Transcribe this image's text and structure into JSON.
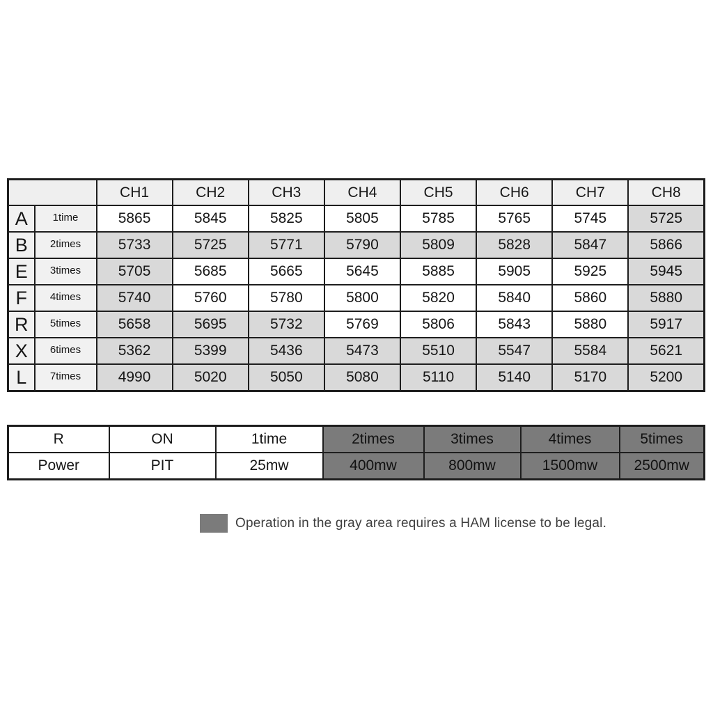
{
  "colors": {
    "border": "#1e1e1e",
    "text": "#161616",
    "header_bg": "#efefef",
    "label_bg": "#f1f1f1",
    "cell_white": "#ffffff",
    "cell_gray": "#d9d9d9",
    "dark_cell": "#7b7b7b",
    "legend_swatch": "#7b7b7b",
    "legend_text": "#3e3e3e"
  },
  "freq_table": {
    "corner_label": "",
    "channels": [
      "CH1",
      "CH2",
      "CH3",
      "CH4",
      "CH5",
      "CH6",
      "CH7",
      "CH8"
    ],
    "rows": [
      {
        "band": "A",
        "times": "1time",
        "values": [
          "5865",
          "5845",
          "5825",
          "5805",
          "5785",
          "5765",
          "5745",
          "5725"
        ],
        "gray": [
          0,
          0,
          0,
          0,
          0,
          0,
          0,
          1
        ]
      },
      {
        "band": "B",
        "times": "2times",
        "values": [
          "5733",
          "5725",
          "5771",
          "5790",
          "5809",
          "5828",
          "5847",
          "5866"
        ],
        "gray": [
          1,
          1,
          1,
          1,
          1,
          1,
          1,
          1
        ]
      },
      {
        "band": "E",
        "times": "3times",
        "values": [
          "5705",
          "5685",
          "5665",
          "5645",
          "5885",
          "5905",
          "5925",
          "5945"
        ],
        "gray": [
          1,
          0,
          0,
          0,
          0,
          0,
          0,
          1
        ]
      },
      {
        "band": "F",
        "times": "4times",
        "values": [
          "5740",
          "5760",
          "5780",
          "5800",
          "5820",
          "5840",
          "5860",
          "5880"
        ],
        "gray": [
          1,
          0,
          0,
          0,
          0,
          0,
          0,
          1
        ]
      },
      {
        "band": "R",
        "times": "5times",
        "values": [
          "5658",
          "5695",
          "5732",
          "5769",
          "5806",
          "5843",
          "5880",
          "5917"
        ],
        "gray": [
          1,
          1,
          1,
          0,
          0,
          0,
          0,
          1
        ]
      },
      {
        "band": "X",
        "times": "6times",
        "values": [
          "5362",
          "5399",
          "5436",
          "5473",
          "5510",
          "5547",
          "5584",
          "5621"
        ],
        "gray": [
          1,
          1,
          1,
          1,
          1,
          1,
          1,
          1
        ]
      },
      {
        "band": "L",
        "times": "7times",
        "values": [
          "4990",
          "5020",
          "5050",
          "5080",
          "5110",
          "5140",
          "5170",
          "5200"
        ],
        "gray": [
          1,
          1,
          1,
          1,
          1,
          1,
          1,
          1
        ]
      }
    ]
  },
  "settings_table": {
    "rows": [
      {
        "cells": [
          {
            "label": "R",
            "dark": false
          },
          {
            "label": "ON",
            "dark": false
          },
          {
            "label": "1time",
            "dark": false
          },
          {
            "label": "2times",
            "dark": true
          },
          {
            "label": "3times",
            "dark": true
          },
          {
            "label": "4times",
            "dark": true
          },
          {
            "label": "5times",
            "dark": true
          }
        ]
      },
      {
        "cells": [
          {
            "label": "Power",
            "dark": false
          },
          {
            "label": "PIT",
            "dark": false
          },
          {
            "label": "25mw",
            "dark": false
          },
          {
            "label": "400mw",
            "dark": true
          },
          {
            "label": "800mw",
            "dark": true
          },
          {
            "label": "1500mw",
            "dark": true
          },
          {
            "label": "2500mw",
            "dark": true
          }
        ]
      }
    ]
  },
  "legend": {
    "text": "Operation in the gray area requires a HAM license to be legal."
  },
  "chart_data": [
    {
      "type": "table",
      "columns": [
        "",
        "",
        "CH1",
        "CH2",
        "CH3",
        "CH4",
        "CH5",
        "CH6",
        "CH7",
        "CH8"
      ],
      "rows": [
        [
          "A",
          "1time",
          5865,
          5845,
          5825,
          5805,
          5785,
          5765,
          5745,
          5725
        ],
        [
          "B",
          "2times",
          5733,
          5725,
          5771,
          5790,
          5809,
          5828,
          5847,
          5866
        ],
        [
          "E",
          "3times",
          5705,
          5685,
          5665,
          5645,
          5885,
          5905,
          5925,
          5945
        ],
        [
          "F",
          "4times",
          5740,
          5760,
          5780,
          5800,
          5820,
          5840,
          5860,
          5880
        ],
        [
          "R",
          "5times",
          5658,
          5695,
          5732,
          5769,
          5806,
          5843,
          5880,
          5917
        ],
        [
          "X",
          "6times",
          5362,
          5399,
          5436,
          5473,
          5510,
          5547,
          5584,
          5621
        ],
        [
          "L",
          "7times",
          4990,
          5020,
          5050,
          5080,
          5110,
          5140,
          5170,
          5200
        ]
      ]
    },
    {
      "type": "table",
      "rows": [
        [
          "R",
          "ON",
          "1time",
          "2times",
          "3times",
          "4times",
          "5times"
        ],
        [
          "Power",
          "PIT",
          "25mw",
          "400mw",
          "800mw",
          "1500mw",
          "2500mw"
        ]
      ]
    }
  ]
}
